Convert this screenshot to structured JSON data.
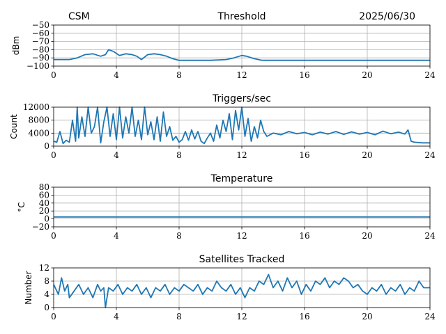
{
  "header": {
    "left": "CSM",
    "right": "2025/06/30"
  },
  "colors": {
    "series": "#1f77b4",
    "grid": "#b0b0b0"
  },
  "chart_data": [
    {
      "type": "line",
      "title": "Threshold",
      "ylabel": "dBm",
      "xlim": [
        0,
        24
      ],
      "ylim": [
        -100,
        -50
      ],
      "xticks": [
        0,
        4,
        8,
        12,
        16,
        20,
        24
      ],
      "yticks": [
        -100,
        -90,
        -80,
        -70,
        -60,
        -50
      ],
      "grid": true,
      "x": [
        0,
        0.5,
        1.0,
        1.5,
        2.0,
        2.5,
        3.0,
        3.3,
        3.5,
        3.8,
        4.2,
        4.6,
        5.0,
        5.3,
        5.6,
        6.0,
        6.4,
        6.8,
        7.2,
        7.6,
        8.0,
        9.0,
        10.0,
        11.0,
        11.5,
        12.0,
        12.3,
        12.8,
        13.3,
        14.0,
        16.0,
        18.0,
        20.0,
        22.0,
        24.0
      ],
      "values": [
        -92,
        -92,
        -92,
        -90,
        -86,
        -85,
        -88,
        -86,
        -80,
        -82,
        -87,
        -85,
        -86,
        -88,
        -92,
        -86,
        -85,
        -86,
        -88,
        -91,
        -93,
        -93,
        -93,
        -92,
        -90,
        -87,
        -88,
        -91,
        -93,
        -93,
        -93,
        -93,
        -93,
        -93,
        -93
      ]
    },
    {
      "type": "line",
      "title": "Triggers/sec",
      "ylabel": "Count",
      "xlim": [
        0,
        24
      ],
      "ylim": [
        0,
        12000
      ],
      "xticks": [
        0,
        4,
        8,
        12,
        16,
        20,
        24
      ],
      "yticks": [
        0,
        4000,
        8000,
        12000
      ],
      "ytick_labels": [
        "0",
        "4000",
        "8000",
        "12000"
      ],
      "grid": true,
      "x": [
        0.0,
        0.2,
        0.4,
        0.6,
        0.8,
        1.0,
        1.2,
        1.4,
        1.5,
        1.6,
        1.8,
        2.0,
        2.2,
        2.4,
        2.6,
        2.8,
        3.0,
        3.2,
        3.4,
        3.6,
        3.8,
        4.0,
        4.2,
        4.4,
        4.6,
        4.8,
        5.0,
        5.2,
        5.4,
        5.6,
        5.8,
        6.0,
        6.2,
        6.4,
        6.6,
        6.8,
        7.0,
        7.2,
        7.4,
        7.6,
        7.8,
        8.0,
        8.2,
        8.4,
        8.6,
        8.8,
        9.0,
        9.2,
        9.4,
        9.6,
        9.8,
        10.0,
        10.2,
        10.4,
        10.6,
        10.8,
        11.0,
        11.2,
        11.4,
        11.6,
        11.8,
        12.0,
        12.2,
        12.4,
        12.6,
        12.8,
        13.0,
        13.2,
        13.4,
        13.6,
        14.0,
        14.5,
        15.0,
        15.5,
        16.0,
        16.5,
        17.0,
        17.5,
        18.0,
        18.5,
        19.0,
        19.5,
        20.0,
        20.5,
        21.0,
        21.5,
        22.0,
        22.4,
        22.6,
        22.8,
        23.0,
        23.5,
        24.0
      ],
      "values": [
        1500,
        1200,
        4500,
        800,
        1800,
        1200,
        8000,
        1500,
        12000,
        2500,
        9000,
        3000,
        12000,
        4000,
        6000,
        12000,
        1000,
        7500,
        12000,
        3000,
        10000,
        2000,
        12000,
        2500,
        9000,
        4000,
        12000,
        3000,
        8000,
        2000,
        12000,
        3500,
        7500,
        2000,
        9000,
        1500,
        10500,
        3000,
        6000,
        1800,
        3000,
        1200,
        2000,
        4500,
        1800,
        5000,
        2200,
        4500,
        1500,
        800,
        2500,
        4000,
        1500,
        6500,
        2500,
        8000,
        4500,
        10000,
        2000,
        11000,
        5000,
        12000,
        3000,
        8500,
        1500,
        6000,
        2500,
        8000,
        4500,
        3000,
        4000,
        3500,
        4500,
        3800,
        4200,
        3500,
        4300,
        3700,
        4500,
        3600,
        4400,
        3700,
        4200,
        3500,
        4600,
        3800,
        4300,
        3700,
        5000,
        1500,
        1200,
        1000,
        1000
      ]
    },
    {
      "type": "line",
      "title": "Temperature",
      "ylabel": "°C",
      "xlim": [
        0,
        24
      ],
      "ylim": [
        -20,
        80
      ],
      "xticks": [
        0,
        4,
        8,
        12,
        16,
        20,
        24
      ],
      "yticks": [
        -20,
        0,
        20,
        40,
        60,
        80
      ],
      "grid": true,
      "x": [
        0,
        24
      ],
      "values": [
        5,
        5
      ]
    },
    {
      "type": "line",
      "title": "Satellites Tracked",
      "ylabel": "Number",
      "xlim": [
        0,
        24
      ],
      "ylim": [
        0,
        12
      ],
      "xticks": [
        0,
        4,
        8,
        12,
        16,
        20,
        24
      ],
      "yticks": [
        0,
        4,
        8,
        12
      ],
      "grid": true,
      "x": [
        0.0,
        0.3,
        0.5,
        0.7,
        0.9,
        1.0,
        1.3,
        1.6,
        1.9,
        2.2,
        2.5,
        2.8,
        3.0,
        3.2,
        3.3,
        3.5,
        3.8,
        4.1,
        4.4,
        4.7,
        5.0,
        5.3,
        5.6,
        5.9,
        6.2,
        6.5,
        6.8,
        7.1,
        7.4,
        7.7,
        8.0,
        8.3,
        8.6,
        8.9,
        9.2,
        9.5,
        9.8,
        10.1,
        10.4,
        10.7,
        11.0,
        11.3,
        11.6,
        11.9,
        12.2,
        12.5,
        12.8,
        13.1,
        13.4,
        13.7,
        14.0,
        14.3,
        14.6,
        14.9,
        15.2,
        15.5,
        15.8,
        16.1,
        16.4,
        16.7,
        17.0,
        17.3,
        17.6,
        17.9,
        18.2,
        18.5,
        18.8,
        19.1,
        19.4,
        19.7,
        20.0,
        20.3,
        20.6,
        20.9,
        21.2,
        21.5,
        21.8,
        22.1,
        22.4,
        22.7,
        23.0,
        23.3,
        23.6,
        24.0
      ],
      "values": [
        7,
        4,
        9,
        5,
        7,
        3,
        5,
        7,
        4,
        6,
        3,
        7,
        5,
        6,
        0,
        6,
        5,
        7,
        4,
        6,
        5,
        7,
        4,
        6,
        3,
        6,
        5,
        7,
        4,
        6,
        5,
        7,
        6,
        5,
        7,
        4,
        6,
        5,
        8,
        6,
        5,
        7,
        4,
        6,
        3,
        6,
        5,
        8,
        7,
        10,
        6,
        8,
        5,
        9,
        6,
        8,
        4,
        7,
        5,
        8,
        7,
        9,
        6,
        8,
        7,
        9,
        8,
        6,
        7,
        5,
        4,
        6,
        5,
        7,
        4,
        6,
        5,
        7,
        4,
        6,
        5,
        8,
        6,
        6
      ]
    }
  ]
}
